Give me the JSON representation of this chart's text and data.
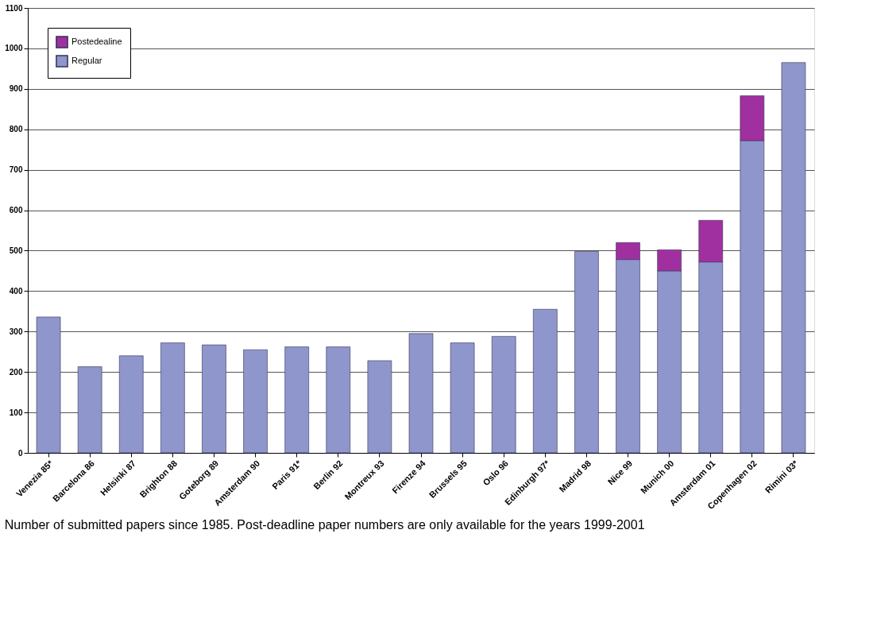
{
  "chart_data": {
    "type": "bar",
    "stacked": true,
    "categories": [
      "Venezia 85*",
      "Barcelona 86",
      "Helsinki 87",
      "Brighton 88",
      "Goteborg 89",
      "Amsterdam 90",
      "Paris 91*",
      "Berlin 92",
      "Montreux 93",
      "Firenze 94",
      "Brussels 95",
      "Oslo 96",
      "Edinburgh 97*",
      "Madrid 98",
      "Nice 99",
      "Munich 00",
      "Amsterdam 01",
      "Copenhagen 02",
      "Rimini 03*"
    ],
    "series": [
      {
        "name": "Regular",
        "color": "#8f96cc",
        "values": [
          336,
          213,
          240,
          272,
          267,
          255,
          262,
          262,
          228,
          295,
          272,
          288,
          355,
          498,
          478,
          450,
          472,
          772,
          965
        ]
      },
      {
        "name": "Postedealine",
        "color": "#a0309f",
        "values": [
          null,
          null,
          null,
          null,
          null,
          null,
          null,
          null,
          null,
          null,
          null,
          null,
          null,
          null,
          42,
          52,
          103,
          111,
          null
        ]
      }
    ],
    "ylim": [
      0,
      1100
    ],
    "yticks": [
      0,
      100,
      200,
      300,
      400,
      500,
      600,
      700,
      800,
      900,
      1000,
      1100
    ],
    "grid": "y",
    "legend": "top left",
    "annotations": [
      "Number of submitted papers since 1985. Post-deadline paper numbers are only available for the years 1999-2001"
    ]
  }
}
